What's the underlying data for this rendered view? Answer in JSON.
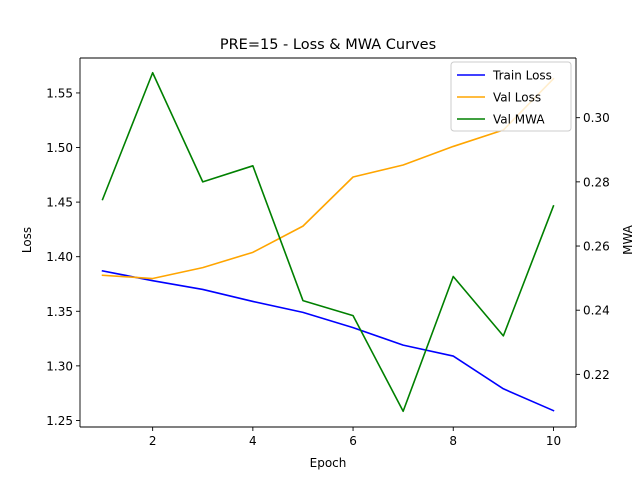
{
  "chart_data": {
    "type": "line",
    "title": "PRE=15 - Loss & MWA Curves",
    "xlabel": "Epoch",
    "ylabel": "Loss",
    "y2label": "MWA",
    "xlim": [
      0.55,
      10.45
    ],
    "ylim": [
      1.244,
      1.582
    ],
    "y2lim": [
      0.2036,
      0.3186
    ],
    "x_ticks": [
      2,
      4,
      6,
      8,
      10
    ],
    "y_ticks": [
      1.25,
      1.3,
      1.35,
      1.4,
      1.45,
      1.5,
      1.55
    ],
    "y_tick_labels": [
      "1.25",
      "1.30",
      "1.35",
      "1.40",
      "1.45",
      "1.50",
      "1.55"
    ],
    "y2_ticks": [
      0.22,
      0.24,
      0.26,
      0.28,
      0.3
    ],
    "y2_tick_labels": [
      "0.22",
      "0.24",
      "0.26",
      "0.28",
      "0.30"
    ],
    "grid": false,
    "legend_position": "upper right",
    "x": [
      1,
      2,
      3,
      4,
      5,
      6,
      7,
      8,
      9,
      10
    ],
    "series": [
      {
        "name": "Train Loss",
        "axis": "left",
        "color": "#0000ff",
        "values": [
          1.387,
          1.378,
          1.37,
          1.359,
          1.349,
          1.335,
          1.319,
          1.309,
          1.279,
          1.259
        ]
      },
      {
        "name": "Val Loss",
        "axis": "left",
        "color": "#ffa500",
        "values": [
          1.383,
          1.38,
          1.39,
          1.404,
          1.428,
          1.473,
          1.484,
          1.501,
          1.516,
          1.563
        ]
      },
      {
        "name": "Val MWA",
        "axis": "right",
        "color": "#008000",
        "values": [
          0.2745,
          0.314,
          0.28,
          0.285,
          0.243,
          0.2383,
          0.2085,
          0.2505,
          0.232,
          0.2725
        ]
      }
    ]
  }
}
